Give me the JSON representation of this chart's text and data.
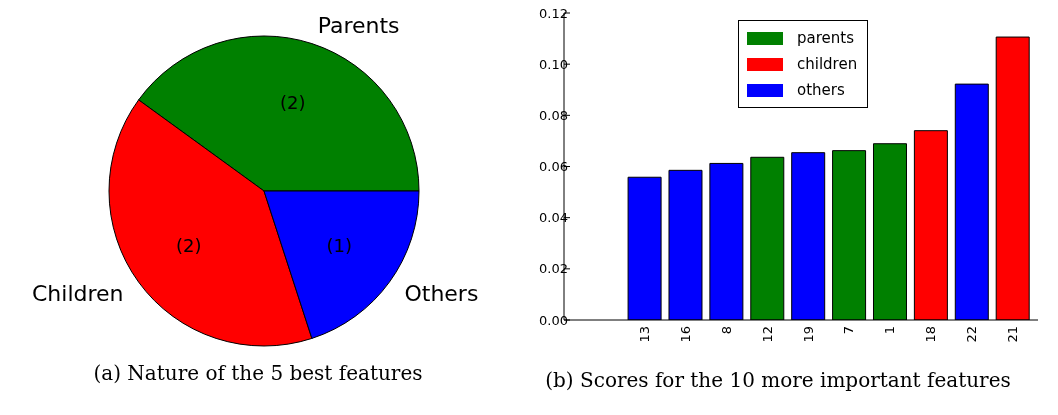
{
  "chart_data": [
    {
      "type": "pie",
      "title": "(a) Nature of the 5 best features",
      "categories": [
        "Parents",
        "Children",
        "Others"
      ],
      "values": [
        2,
        2,
        1
      ],
      "value_labels": [
        "(2)",
        "(2)",
        "(1)"
      ],
      "colors": [
        "#008000",
        "#ff0000",
        "#0000ff"
      ]
    },
    {
      "type": "bar",
      "title": "(b) Scores for the 10 more important features",
      "categories": [
        "13",
        "16",
        "8",
        "12",
        "19",
        "7",
        "1",
        "18",
        "22",
        "21"
      ],
      "series": [
        {
          "name": "parents",
          "color": "#008000",
          "values": [
            null,
            null,
            null,
            0.0636,
            null,
            0.0662,
            0.0689,
            null,
            null,
            null
          ]
        },
        {
          "name": "children",
          "color": "#ff0000",
          "values": [
            null,
            null,
            null,
            null,
            null,
            null,
            null,
            0.074,
            null,
            0.1106
          ]
        },
        {
          "name": "others",
          "color": "#0000ff",
          "values": [
            0.0558,
            0.0585,
            0.0612,
            null,
            0.0654,
            null,
            null,
            null,
            0.0922,
            null
          ]
        }
      ],
      "ylim": [
        0,
        0.12
      ],
      "yticks": [
        {
          "value": 0,
          "label": "0.00"
        },
        {
          "value": 0.02,
          "label": "0.02"
        },
        {
          "value": 0.04,
          "label": "0.04"
        },
        {
          "value": 0.06,
          "label": "0.06"
        },
        {
          "value": 0.08,
          "label": "0.08"
        },
        {
          "value": 0.1,
          "label": "0.10"
        },
        {
          "value": 0.12,
          "label": "0.12"
        }
      ],
      "legend": "top"
    }
  ]
}
